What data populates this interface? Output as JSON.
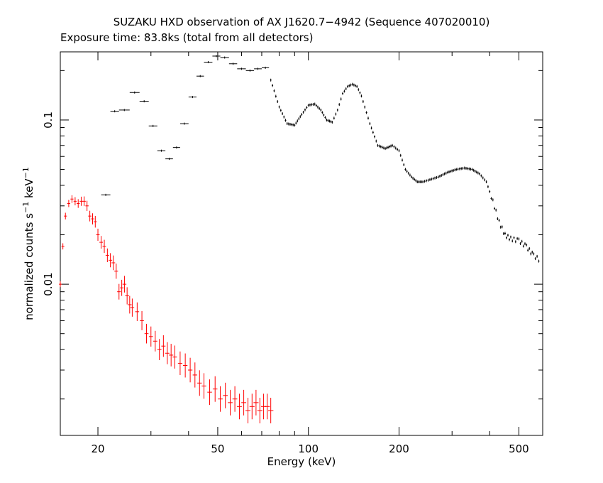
{
  "chart_data": {
    "type": "scatter",
    "title": "SUZAKU HXD observation of AX J1620.7−4942 (Sequence 407020010)",
    "subtitle": "Exposure time: 83.8ks (total from all detectors)",
    "xlabel": "Energy (keV)",
    "ylabel_main": "normalized counts s",
    "ylabel_exp1": "−1",
    "ylabel_mid": " keV",
    "ylabel_exp2": "−1",
    "x_scale": "log",
    "y_scale": "log",
    "xlim": [
      15,
      600
    ],
    "ylim": [
      0.0012,
      0.26
    ],
    "x_ticks": [
      {
        "value": 20,
        "label": "20"
      },
      {
        "value": 50,
        "label": "50"
      },
      {
        "value": 100,
        "label": "100"
      },
      {
        "value": 200,
        "label": "200"
      },
      {
        "value": 500,
        "label": "500"
      }
    ],
    "y_ticks": [
      {
        "value": 0.1,
        "label": "0.1"
      },
      {
        "value": 0.01,
        "label": "0.01"
      }
    ],
    "grid": false,
    "legend": "none",
    "series": [
      {
        "color": "#000000",
        "style": "crosses",
        "x_bins": [
          [
            20.5,
            22.0
          ],
          [
            22.0,
            23.5
          ],
          [
            23.5,
            25.5
          ],
          [
            25.5,
            27.5
          ],
          [
            27.5,
            29.5
          ],
          [
            29.5,
            31.5
          ],
          [
            31.5,
            33.5
          ],
          [
            33.5,
            35.5
          ],
          [
            35.5,
            37.5
          ],
          [
            37.5,
            40.0
          ],
          [
            40.0,
            42.5
          ],
          [
            42.5,
            45.0
          ],
          [
            45.0,
            48.0
          ],
          [
            48.0,
            51.0
          ],
          [
            51.0,
            54.5
          ],
          [
            54.5,
            58.0
          ],
          [
            58.0,
            62.0
          ],
          [
            62.0,
            66.0
          ],
          [
            66.0,
            70.0
          ],
          [
            70.0,
            74.0
          ]
        ],
        "binned_values": [
          0.035,
          0.113,
          0.115,
          0.147,
          0.13,
          0.092,
          0.065,
          0.058,
          0.068,
          0.095,
          0.138,
          0.185,
          0.225,
          0.245,
          0.24,
          0.22,
          0.205,
          0.2,
          0.205,
          0.208
        ],
        "x": [
          75,
          80,
          85,
          90,
          95,
          100,
          105,
          110,
          115,
          120,
          125,
          130,
          135,
          140,
          145,
          150,
          160,
          170,
          180,
          190,
          200,
          210,
          220,
          230,
          240,
          250,
          270,
          290,
          310,
          330,
          350,
          370,
          390,
          410,
          430,
          450,
          470,
          500,
          530,
          560,
          590
        ],
        "y": [
          0.175,
          0.12,
          0.095,
          0.093,
          0.108,
          0.123,
          0.125,
          0.115,
          0.1,
          0.097,
          0.115,
          0.145,
          0.16,
          0.165,
          0.16,
          0.14,
          0.095,
          0.07,
          0.067,
          0.07,
          0.065,
          0.05,
          0.045,
          0.042,
          0.042,
          0.043,
          0.045,
          0.048,
          0.05,
          0.051,
          0.05,
          0.047,
          0.042,
          0.032,
          0.024,
          0.02,
          0.019,
          0.0185,
          0.017,
          0.015,
          0.014
        ]
      },
      {
        "color": "#ff0000",
        "style": "crosses_with_error_bars",
        "x": [
          15.0,
          15.3,
          15.6,
          16.0,
          16.4,
          16.8,
          17.2,
          17.6,
          18.0,
          18.4,
          18.8,
          19.2,
          19.6,
          20.0,
          20.5,
          21.0,
          21.5,
          22.0,
          22.5,
          23.0,
          23.5,
          24.0,
          24.5,
          25.0,
          25.5,
          26.0,
          27.0,
          28.0,
          29.0,
          30.0,
          31.0,
          32.0,
          33.0,
          34.0,
          35.0,
          36.0,
          37.5,
          39.0,
          40.5,
          42.0,
          43.5,
          45.0,
          47.0,
          49.0,
          51.0,
          53.0,
          55.0,
          57.0,
          59.0,
          61.0,
          63.0,
          65.0,
          67.0,
          69.0,
          71.0,
          73.0,
          75.0
        ],
        "y": [
          0.01,
          0.017,
          0.026,
          0.031,
          0.033,
          0.032,
          0.031,
          0.032,
          0.032,
          0.03,
          0.026,
          0.025,
          0.024,
          0.02,
          0.018,
          0.017,
          0.015,
          0.014,
          0.0135,
          0.012,
          0.009,
          0.0095,
          0.01,
          0.0085,
          0.0075,
          0.0072,
          0.0068,
          0.006,
          0.005,
          0.0048,
          0.0045,
          0.004,
          0.0042,
          0.0038,
          0.0037,
          0.0036,
          0.0033,
          0.0032,
          0.003,
          0.0028,
          0.0025,
          0.0024,
          0.0022,
          0.0023,
          0.002,
          0.0021,
          0.0019,
          0.002,
          0.0018,
          0.0019,
          0.0017,
          0.0018,
          0.0019,
          0.0017,
          0.0018,
          0.0018,
          0.0017
        ]
      }
    ]
  }
}
